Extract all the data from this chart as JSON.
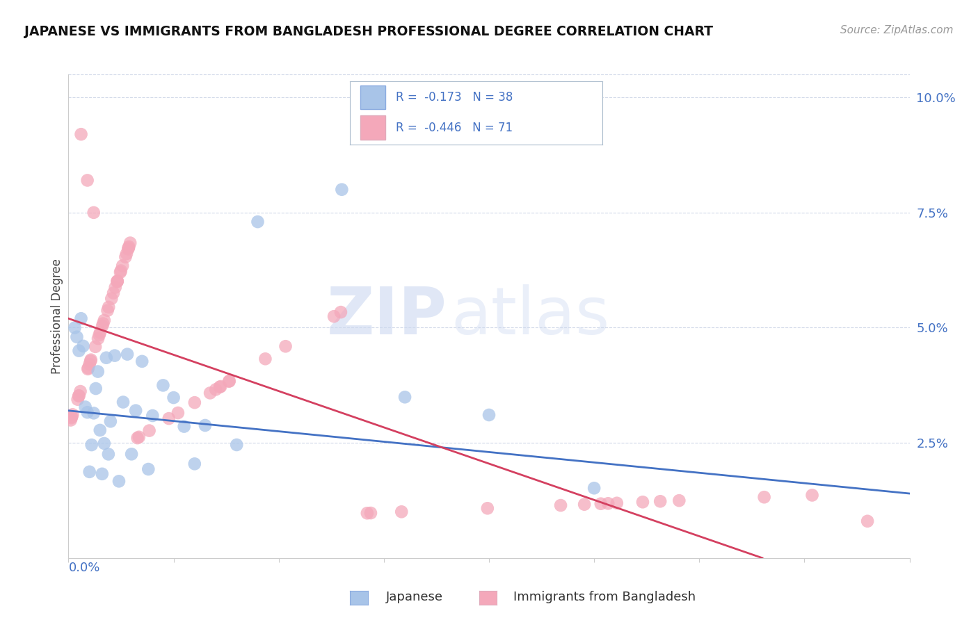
{
  "title": "JAPANESE VS IMMIGRANTS FROM BANGLADESH PROFESSIONAL DEGREE CORRELATION CHART",
  "source": "Source: ZipAtlas.com",
  "ylabel": "Professional Degree",
  "legend_r1": "R =  -0.173   N = 38",
  "legend_r2": "R =  -0.446   N = 71",
  "color_japanese": "#a8c4e8",
  "color_bangladesh": "#f4a8ba",
  "color_line_japanese": "#4472c4",
  "color_line_bangladesh": "#d44060",
  "color_text_blue": "#4472c4",
  "xlim": [
    0.0,
    0.4
  ],
  "ylim": [
    0.0,
    0.105
  ],
  "watermark_zip": "ZIP",
  "watermark_atlas": "atlas",
  "background_color": "#ffffff",
  "grid_color": "#d0d8e8",
  "right_ytick_vals": [
    0.025,
    0.05,
    0.075,
    0.1
  ],
  "right_ytick_labels": [
    "2.5%",
    "5.0%",
    "7.5%",
    "10.0%"
  ],
  "jap_line_x0": 0.0,
  "jap_line_y0": 0.032,
  "jap_line_x1": 0.4,
  "jap_line_y1": 0.014,
  "bang_line_x0": 0.0,
  "bang_line_y0": 0.052,
  "bang_line_x1": 0.33,
  "bang_line_y1": 0.0
}
